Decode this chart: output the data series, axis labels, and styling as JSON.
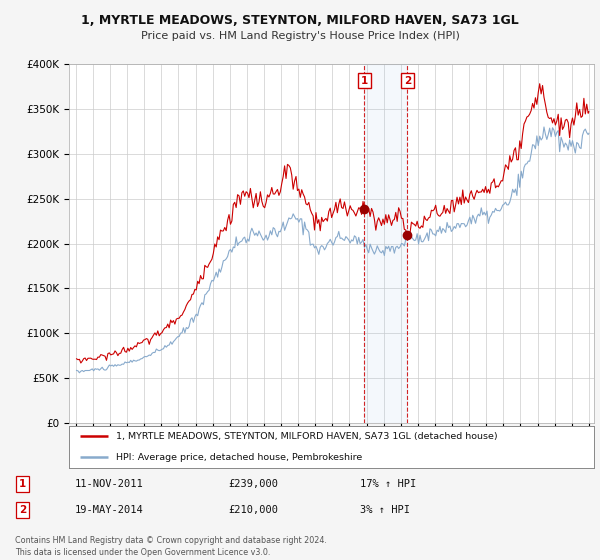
{
  "title": "1, MYRTLE MEADOWS, STEYNTON, MILFORD HAVEN, SA73 1GL",
  "subtitle": "Price paid vs. HM Land Registry's House Price Index (HPI)",
  "legend_line1": "1, MYRTLE MEADOWS, STEYNTON, MILFORD HAVEN, SA73 1GL (detached house)",
  "legend_line2": "HPI: Average price, detached house, Pembrokeshire",
  "annotation1_label": "1",
  "annotation1_date": "11-NOV-2011",
  "annotation1_price": "£239,000",
  "annotation1_hpi": "17% ↑ HPI",
  "annotation1_year": 2011.87,
  "annotation1_value": 239000,
  "annotation2_label": "2",
  "annotation2_date": "19-MAY-2014",
  "annotation2_price": "£210,000",
  "annotation2_hpi": "3% ↑ HPI",
  "annotation2_year": 2014.38,
  "annotation2_value": 210000,
  "footer": "Contains HM Land Registry data © Crown copyright and database right 2024.\nThis data is licensed under the Open Government Licence v3.0.",
  "line_color_price": "#cc0000",
  "line_color_hpi": "#88aacc",
  "background_color": "#f5f5f5",
  "plot_bg_color": "#ffffff",
  "ylim": [
    0,
    400000
  ],
  "yticks": [
    0,
    50000,
    100000,
    150000,
    200000,
    250000,
    300000,
    350000,
    400000
  ],
  "ytick_labels": [
    "£0",
    "£50K",
    "£100K",
    "£150K",
    "£200K",
    "£250K",
    "£300K",
    "£350K",
    "£400K"
  ]
}
